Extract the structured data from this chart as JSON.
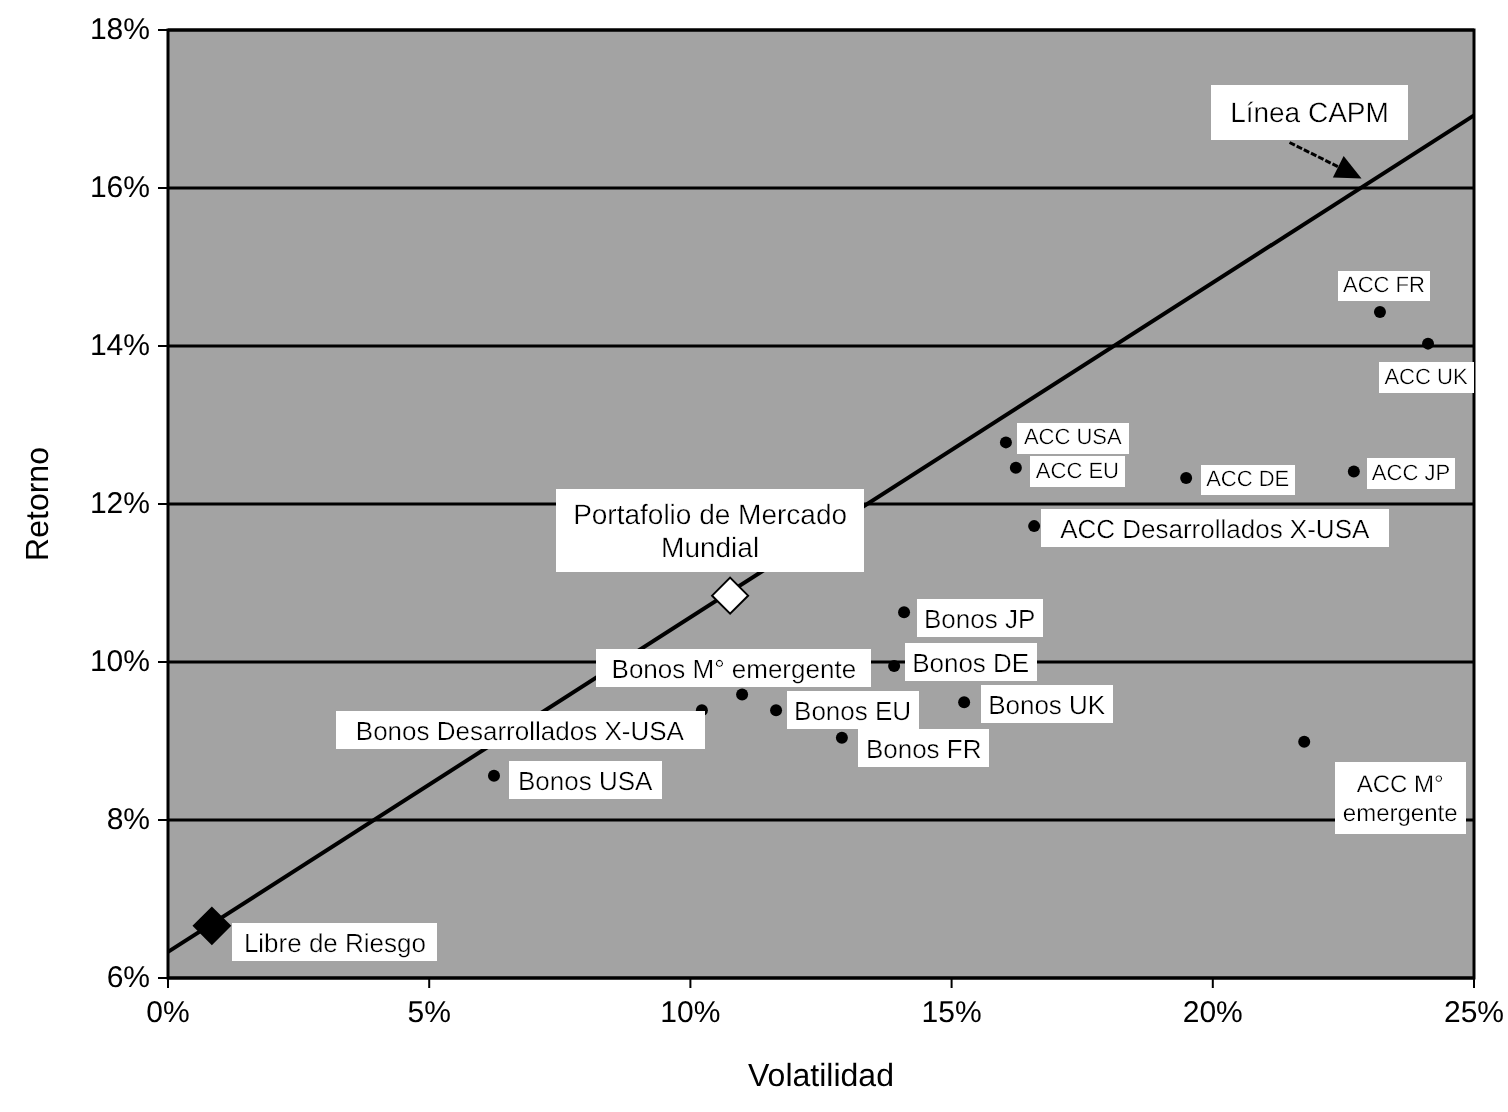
{
  "chart_data": {
    "type": "scatter",
    "xlabel": "Volatilidad",
    "ylabel": "Retorno",
    "xlim": [
      0,
      25
    ],
    "ylim": [
      6,
      18
    ],
    "xticks": [
      {
        "value": 0,
        "label": "0%"
      },
      {
        "value": 5,
        "label": "5%"
      },
      {
        "value": 10,
        "label": "10%"
      },
      {
        "value": 15,
        "label": "15%"
      },
      {
        "value": 20,
        "label": "20%"
      },
      {
        "value": 25,
        "label": "25%"
      }
    ],
    "yticks": [
      {
        "value": 6,
        "label": "6%"
      },
      {
        "value": 8,
        "label": "8%"
      },
      {
        "value": 10,
        "label": "10%"
      },
      {
        "value": 12,
        "label": "12%"
      },
      {
        "value": 14,
        "label": "14%"
      },
      {
        "value": 16,
        "label": "16%"
      },
      {
        "value": 18,
        "label": "18%"
      }
    ],
    "grid": "y",
    "annotations": [
      {
        "text": "Línea CAPM",
        "x": 23.0,
        "y": 16.07
      }
    ],
    "series": [
      {
        "type": "line",
        "color": "#000000",
        "x": [
          0,
          25
        ],
        "values": [
          6.33,
          16.92
        ],
        "marker": "none"
      },
      {
        "name": "Libre de Riesgo",
        "color": "#000000",
        "marker": "diamond",
        "x": [
          0.84
        ],
        "values": [
          6.66
        ]
      },
      {
        "name": "Portafolio de Mercado Mundial",
        "color": "#ffffff",
        "marker": "diamond",
        "x": [
          10.76
        ],
        "values": [
          10.84
        ]
      },
      {
        "name": "Bonos USA",
        "color": "#000000",
        "marker": "circle",
        "x": [
          6.24
        ],
        "values": [
          8.56
        ]
      },
      {
        "name": "Bonos Desarrollados X-USA",
        "color": "#000000",
        "marker": "circle",
        "x": [
          10.22
        ],
        "values": [
          9.39
        ]
      },
      {
        "name": "Bonos M° emergente",
        "color": "#000000",
        "marker": "circle",
        "x": [
          10.99
        ],
        "values": [
          9.59
        ]
      },
      {
        "name": "Bonos EU",
        "color": "#000000",
        "marker": "circle",
        "x": [
          11.64
        ],
        "values": [
          9.39
        ]
      },
      {
        "name": "Bonos FR",
        "color": "#000000",
        "marker": "circle",
        "x": [
          12.9
        ],
        "values": [
          9.04
        ]
      },
      {
        "name": "Bonos DE",
        "color": "#000000",
        "marker": "circle",
        "x": [
          13.9
        ],
        "values": [
          9.95
        ]
      },
      {
        "name": "Bonos JP",
        "color": "#000000",
        "marker": "circle",
        "x": [
          14.09
        ],
        "values": [
          10.63
        ]
      },
      {
        "name": "Bonos UK",
        "color": "#000000",
        "marker": "circle",
        "x": [
          15.24
        ],
        "values": [
          9.49
        ]
      },
      {
        "name": "ACC Desarrollados X-USA",
        "color": "#000000",
        "marker": "circle",
        "x": [
          16.58
        ],
        "values": [
          11.72
        ]
      },
      {
        "name": "ACC USA",
        "color": "#000000",
        "marker": "circle",
        "x": [
          16.04
        ],
        "values": [
          12.78
        ]
      },
      {
        "name": "ACC EU",
        "color": "#000000",
        "marker": "circle",
        "x": [
          16.23
        ],
        "values": [
          12.46
        ]
      },
      {
        "name": "ACC DE",
        "color": "#000000",
        "marker": "circle",
        "x": [
          19.49
        ],
        "values": [
          12.33
        ]
      },
      {
        "name": "ACC JP",
        "color": "#000000",
        "marker": "circle",
        "x": [
          22.7
        ],
        "values": [
          12.41
        ]
      },
      {
        "name": "ACC FR",
        "color": "#000000",
        "marker": "circle",
        "x": [
          23.2
        ],
        "values": [
          14.43
        ]
      },
      {
        "name": "ACC UK",
        "color": "#000000",
        "marker": "circle",
        "x": [
          24.12
        ],
        "values": [
          14.03
        ]
      },
      {
        "name": "ACC M° emergente",
        "color": "#000000",
        "marker": "circle",
        "x": [
          21.75
        ],
        "values": [
          8.99
        ]
      }
    ]
  }
}
